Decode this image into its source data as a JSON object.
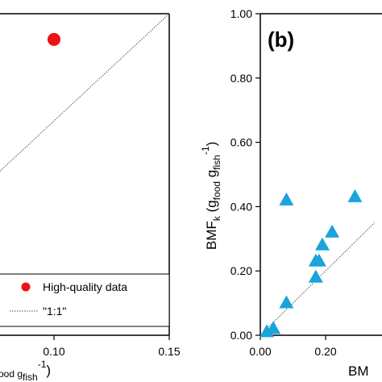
{
  "colors": {
    "high_quality_point": "#ee1111",
    "triangle_fill": "#1aa3dd",
    "axis": "#000000",
    "one_to_one": "#555555"
  },
  "chart_data": [
    {
      "type": "scatter",
      "panel": "a",
      "title": "",
      "xlim": [
        0.0,
        0.15
      ],
      "ylim": [
        0.0,
        0.15
      ],
      "x_ticks": [
        {
          "value": 0.1,
          "label": "0.10"
        },
        {
          "value": 0.15,
          "label": "0.15"
        }
      ],
      "xlabel_visible_fragment": "ood g",
      "xlabel_sub_fish": "fish",
      "xlabel_sup": "-1",
      "xlabel_close": ")",
      "series": [
        {
          "name": "High-quality data",
          "marker": "circle",
          "color": "#ee1111",
          "points": [
            {
              "x": 0.1,
              "y": 0.138
            }
          ]
        }
      ],
      "reference_line": {
        "name": "\"1:1\"",
        "style": "dotted"
      },
      "legend": {
        "placement": "bottom-right",
        "entries": [
          "High-quality data",
          "\"1:1\""
        ]
      }
    },
    {
      "type": "scatter",
      "panel": "b",
      "panel_label": "(b)",
      "xlim": [
        0.0,
        0.35
      ],
      "ylim": [
        0.0,
        1.0
      ],
      "x_ticks": [
        {
          "value": 0.0,
          "label": "0.00"
        },
        {
          "value": 0.2,
          "label": "0.20"
        }
      ],
      "y_ticks": [
        {
          "value": 0.0,
          "label": "0.00"
        },
        {
          "value": 0.2,
          "label": "0.20"
        },
        {
          "value": 0.4,
          "label": "0.40"
        },
        {
          "value": 0.6,
          "label": "0.60"
        },
        {
          "value": 0.8,
          "label": "0.80"
        },
        {
          "value": 1.0,
          "label": "1.00"
        }
      ],
      "ylabel": {
        "main": "BMF",
        "sub_k": "k",
        "open": " (g",
        "sub_food": "food",
        "mid": " g",
        "sub_fish": "fish",
        "sup": "-1",
        "close": ")"
      },
      "xlabel_visible_fragment": "BM",
      "series": [
        {
          "marker": "triangle",
          "color": "#1aa3dd",
          "points": [
            {
              "x": 0.02,
              "y": 0.01
            },
            {
              "x": 0.04,
              "y": 0.02
            },
            {
              "x": 0.08,
              "y": 0.1
            },
            {
              "x": 0.08,
              "y": 0.42
            },
            {
              "x": 0.17,
              "y": 0.18
            },
            {
              "x": 0.17,
              "y": 0.23
            },
            {
              "x": 0.18,
              "y": 0.23
            },
            {
              "x": 0.19,
              "y": 0.28
            },
            {
              "x": 0.22,
              "y": 0.32
            },
            {
              "x": 0.29,
              "y": 0.43
            }
          ]
        }
      ],
      "reference_line": {
        "style": "dotted"
      }
    }
  ]
}
